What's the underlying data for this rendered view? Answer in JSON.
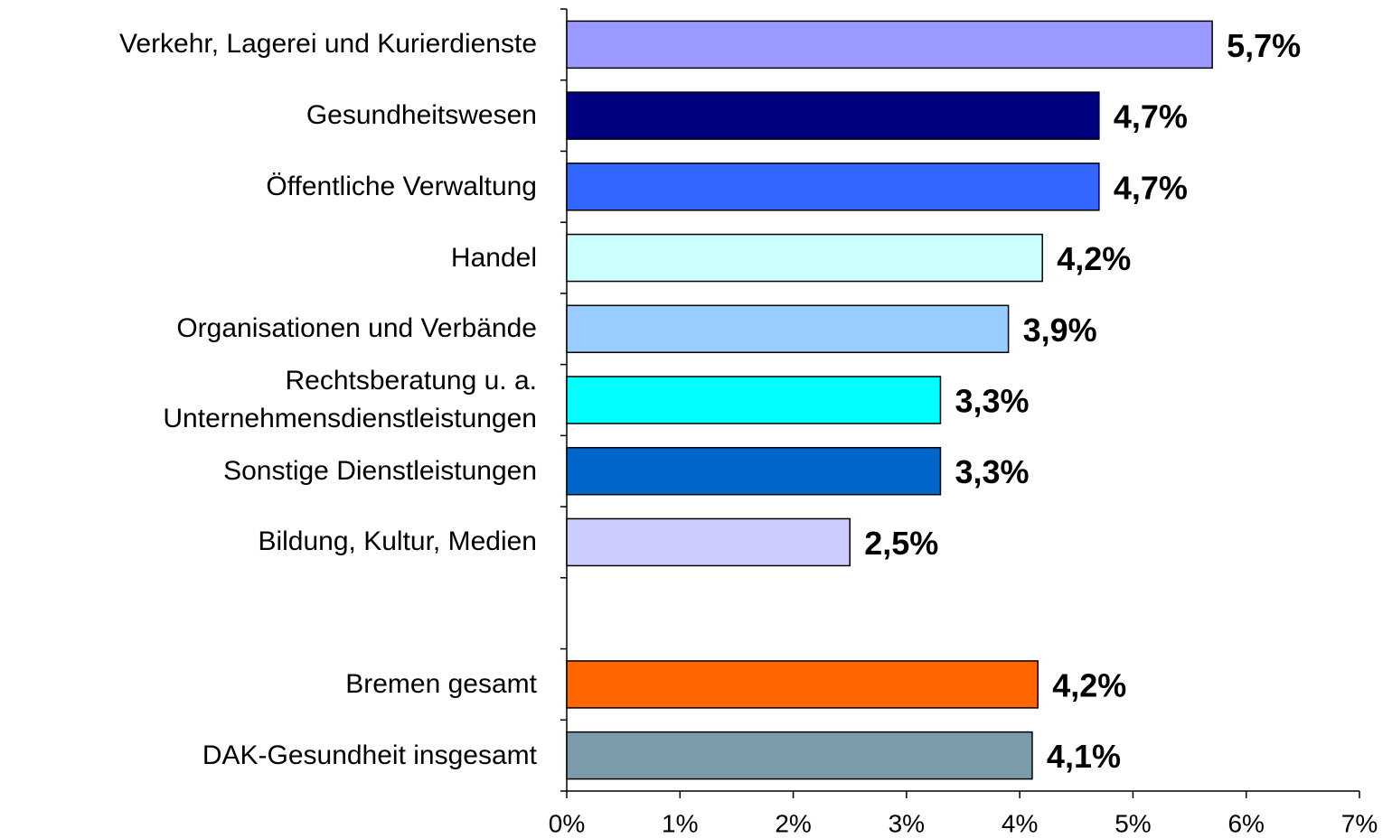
{
  "chart_data": {
    "type": "bar",
    "orientation": "horizontal",
    "categories": [
      "Verkehr, Lagerei und Kurierdienste",
      "Gesundheitswesen",
      "Öffentliche Verwaltung",
      "Handel",
      "Organisationen und Verbände",
      "Rechtsberatung u. a. Unternehmensdienstleistungen",
      "Sonstige Dienstleistungen",
      "Bildung, Kultur, Medien",
      null,
      "Bremen gesamt",
      "DAK-Gesundheit insgesamt"
    ],
    "values": [
      5.7,
      4.7,
      4.7,
      4.2,
      3.9,
      3.3,
      3.3,
      2.5,
      null,
      4.16,
      4.11
    ],
    "value_labels": [
      "5,7%",
      "4,7%",
      "4,7%",
      "4,2%",
      "3,9%",
      "3,3%",
      "3,3%",
      "2,5%",
      null,
      "4,2%",
      "4,1%"
    ],
    "colors": [
      "#9999ff",
      "#000080",
      "#3366ff",
      "#ccffff",
      "#99ccff",
      "#00ffff",
      "#0066cc",
      "#ccccff",
      null,
      "#ff6600",
      "#7b9aaa"
    ],
    "xlim": [
      0,
      7
    ],
    "xticks": [
      {
        "value": 0,
        "label": "0%"
      },
      {
        "value": 1,
        "label": "1%"
      },
      {
        "value": 2,
        "label": "2%"
      },
      {
        "value": 3,
        "label": "3%"
      },
      {
        "value": 4,
        "label": "4%"
      },
      {
        "value": 5,
        "label": "5%"
      },
      {
        "value": 6,
        "label": "6%"
      },
      {
        "value": 7,
        "label": "7%"
      }
    ],
    "grid": false
  }
}
